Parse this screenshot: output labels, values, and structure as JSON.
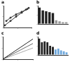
{
  "chart_data": [
    {
      "type": "scatter",
      "title": "a",
      "x": [
        0.05,
        0.25,
        0.45,
        0.65,
        0.8,
        0.9,
        0.85,
        0.65,
        0.45,
        0.25,
        0.1
      ],
      "series": [
        {
          "color": "#333333",
          "line_style": "solid",
          "marker": "circle",
          "values": [
            0.1,
            0.3,
            0.5,
            0.68,
            0.82,
            0.9,
            0.85,
            0.72,
            0.6,
            0.45,
            0.3
          ]
        }
      ],
      "xlim": [
        0,
        1
      ],
      "xticks": [
        0,
        0.5,
        1
      ],
      "ylim": [
        0,
        1
      ],
      "yticks": [
        0,
        0.5,
        1
      ],
      "grid": false,
      "tick_labels": false
    },
    {
      "type": "bar",
      "title": "b",
      "categories": [
        null,
        null,
        null,
        null,
        null,
        null,
        null,
        null,
        null
      ],
      "values": [
        0.9,
        0.75,
        0.7,
        0.65,
        0.6,
        0.2,
        0.15,
        0.1,
        0.1
      ],
      "colors": [
        "#222222",
        "#222222",
        "#222222",
        "#222222",
        "#222222",
        "#999999",
        "#999999",
        "#999999",
        "#999999"
      ],
      "ylim": [
        0,
        1
      ],
      "yticks": [
        0,
        0.5,
        1
      ],
      "grid": false,
      "tick_labels": false
    },
    {
      "type": "line",
      "title": "c",
      "x": [
        0,
        2,
        4,
        6,
        8,
        10
      ],
      "series": [
        {
          "color": "#222222",
          "line_style": "solid",
          "marker": "none",
          "values": [
            0,
            0.18,
            0.36,
            0.54,
            0.72,
            0.9
          ]
        },
        {
          "color": "#666666",
          "line_style": "solid",
          "marker": "none",
          "values": [
            0,
            0.14,
            0.28,
            0.42,
            0.56,
            0.7
          ]
        },
        {
          "color": "#aaaaaa",
          "line_style": "solid",
          "marker": "none",
          "values": [
            0,
            0.1,
            0.2,
            0.3,
            0.4,
            0.5
          ]
        }
      ],
      "xlim": [
        0,
        10
      ],
      "xticks": [
        0,
        5,
        10
      ],
      "ylim": [
        0,
        1
      ],
      "yticks": [
        0,
        0.5,
        1
      ],
      "grid": false,
      "tick_labels": false
    },
    {
      "type": "bar",
      "title": "d",
      "categories": [
        null,
        null,
        null,
        null,
        null,
        null,
        null,
        null,
        null,
        null,
        null
      ],
      "values": [
        0.9,
        0.7,
        0.75,
        0.7,
        0.5,
        0.45,
        0.3,
        0.35,
        0.25,
        0.2,
        0.15
      ],
      "colors": [
        "#222222",
        "#222222",
        "#222222",
        "#222222",
        "#222222",
        "#222222",
        "#6fa8dc",
        "#6fa8dc",
        "#6fa8dc",
        "#6fa8dc",
        "#6fa8dc"
      ],
      "ylim": [
        0,
        1
      ],
      "yticks": [
        0,
        0.5,
        1
      ],
      "grid": false,
      "tick_labels": false
    }
  ]
}
